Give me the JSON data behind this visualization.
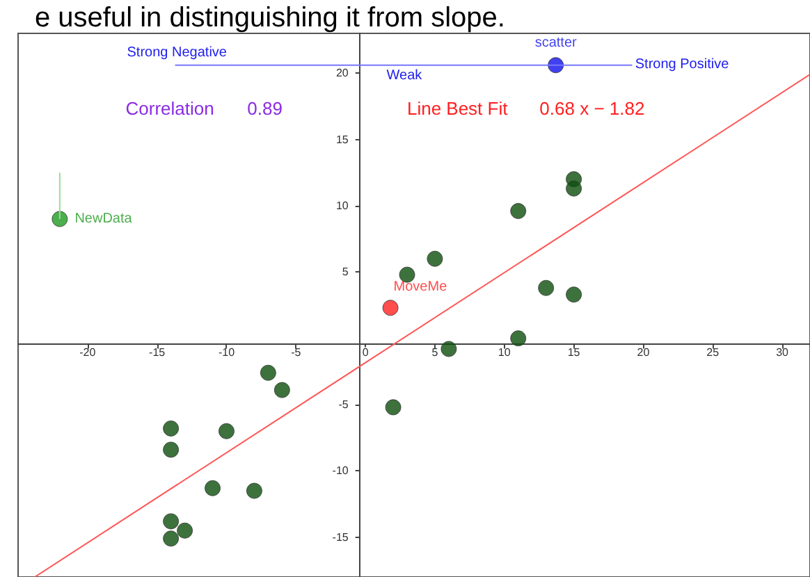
{
  "chart_data": {
    "type": "scatter",
    "title": "e useful in distinguishing it from slope.",
    "xlim": [
      -25,
      32
    ],
    "ylim": [
      -18,
      23
    ],
    "xticks": [
      -20,
      -15,
      -10,
      -5,
      0,
      5,
      10,
      15,
      20,
      25,
      30
    ],
    "yticks": [
      -15,
      -10,
      -5,
      5,
      10,
      15,
      20
    ],
    "grid": false,
    "legend": false,
    "marker": "circle",
    "annotations": [
      "Strong Negative",
      "Weak",
      "Strong Positive",
      "Correlation",
      "0.89",
      "Line Best Fit",
      "0.68 x − 1.82"
    ],
    "series": [
      {
        "color": "#0d4f0d",
        "x": [
          15,
          15,
          11,
          5,
          3,
          13,
          15,
          11,
          6,
          -7,
          -6,
          2,
          -14,
          -10,
          -14,
          -11,
          -8,
          -14,
          -13,
          -14
        ],
        "values": [
          12,
          11.3,
          9.6,
          6,
          4.8,
          3.8,
          3.3,
          0,
          -0.8,
          -2.6,
          -3.9,
          -5.2,
          -6.8,
          -7,
          -8.4,
          -11.3,
          -11.5,
          -13.8,
          -14.5,
          -15.1
        ]
      },
      {
        "type": "line",
        "color": "#ff5555",
        "marker": "none",
        "x": [
          -23.8,
          32
        ],
        "values": [
          -18,
          19.9
        ]
      },
      {
        "type": "line",
        "color": "#99dd99",
        "marker": "none",
        "x": [
          -22,
          -22
        ],
        "values": [
          9,
          12.5
        ]
      },
      {
        "name": "NewData",
        "color": "#1f9a1f",
        "x": [
          -22
        ],
        "values": [
          9
        ]
      },
      {
        "name": "MoveMe",
        "color": "#ff2222",
        "x": [
          1.8
        ],
        "values": [
          2.3
        ]
      },
      {
        "type": "line",
        "color": "#7777ff",
        "marker": "none",
        "x": [
          -13.7,
          19.2
        ],
        "values": [
          20.6,
          20.6
        ]
      },
      {
        "name": "scatter",
        "color": "#1010ee",
        "x": [
          13.7
        ],
        "values": [
          20.6
        ]
      }
    ]
  }
}
